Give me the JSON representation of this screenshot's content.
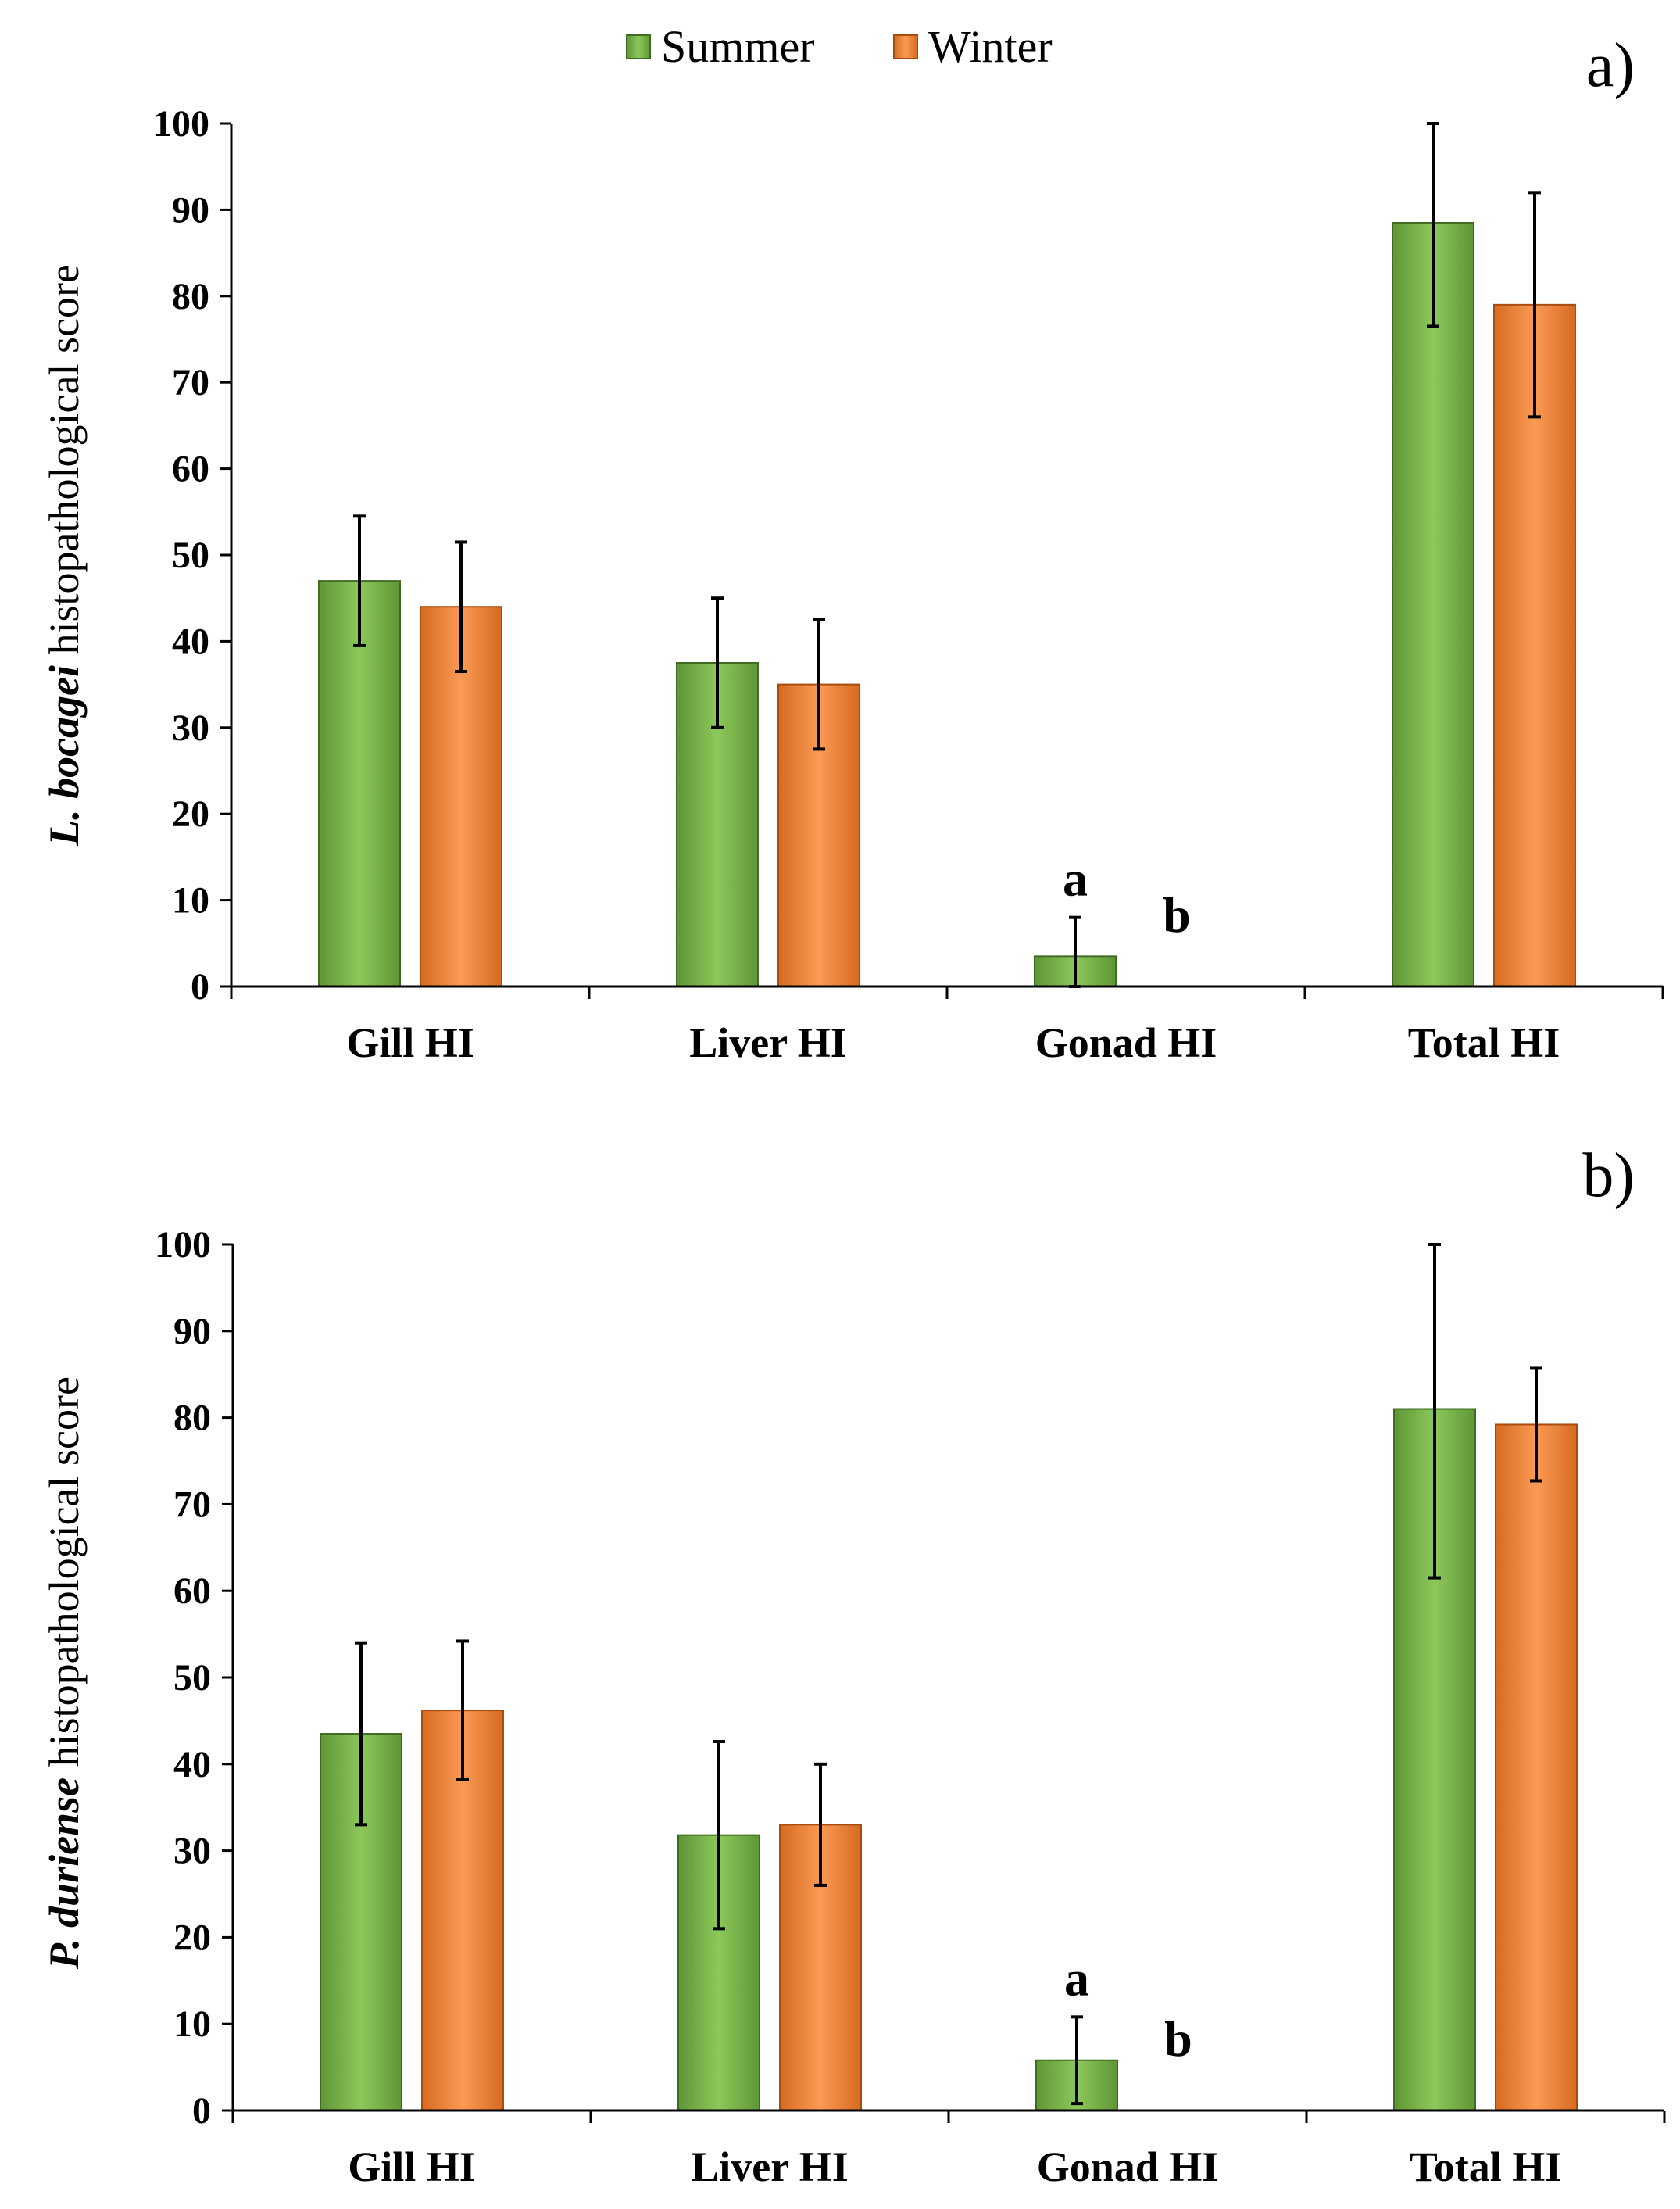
{
  "legend": [
    {
      "name": "Summer",
      "color": "#7ab648"
    },
    {
      "name": "Winter",
      "color": "#f4873b"
    }
  ],
  "chart_data": [
    {
      "type": "bar",
      "panel_label": "a)",
      "ylabel_italic": "L. bocagei",
      "ylabel_rest": " histopathological score",
      "categories": [
        "Gill HI",
        "Liver HI",
        "Gonad HI",
        "Total HI"
      ],
      "ylim": [
        0,
        100
      ],
      "yticks": [
        "0",
        "10",
        "20",
        "30",
        "40",
        "50",
        "60",
        "70",
        "80",
        "90",
        "100"
      ],
      "series": [
        {
          "name": "Summer",
          "values": [
            47,
            37.5,
            3.5,
            88.5
          ],
          "errors": [
            7.5,
            7.5,
            4.5,
            12
          ]
        },
        {
          "name": "Winter",
          "values": [
            44,
            35,
            0,
            79
          ],
          "errors": [
            7.5,
            7.5,
            0,
            13
          ]
        }
      ],
      "annotations": [
        {
          "category": "Gonad HI",
          "series": "Summer",
          "text": "a"
        },
        {
          "category": "Gonad HI",
          "series": "Winter",
          "text": "b"
        }
      ]
    },
    {
      "type": "bar",
      "panel_label": "b)",
      "ylabel_italic": "P. duriense",
      "ylabel_rest": " histopathological score",
      "categories": [
        "Gill HI",
        "Liver HI",
        "Gonad HI",
        "Total HI"
      ],
      "ylim": [
        0,
        100
      ],
      "yticks": [
        "0",
        "10",
        "20",
        "30",
        "40",
        "50",
        "60",
        "70",
        "80",
        "90",
        "100"
      ],
      "series": [
        {
          "name": "Summer",
          "values": [
            43.5,
            31.8,
            5.8,
            81
          ],
          "errors": [
            10.5,
            10.8,
            5,
            19.5
          ]
        },
        {
          "name": "Winter",
          "values": [
            46.2,
            33,
            0,
            79.2
          ],
          "errors": [
            8,
            7,
            0,
            6.5
          ]
        }
      ],
      "annotations": [
        {
          "category": "Gonad HI",
          "series": "Summer",
          "text": "a"
        },
        {
          "category": "Gonad HI",
          "series": "Winter",
          "text": "b"
        }
      ]
    }
  ]
}
